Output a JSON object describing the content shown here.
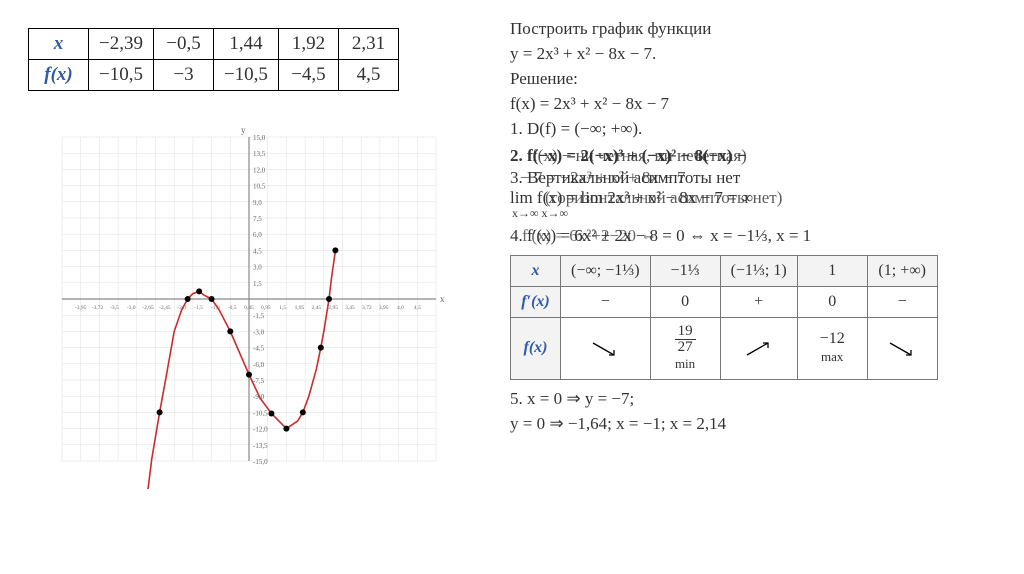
{
  "problem": {
    "title": "Построить график функции",
    "func": "y = 2x³ + x² − 8x − 7.",
    "solution_label": "Решение:",
    "fx": "f(x) = 2x³ + x² − 8x − 7",
    "step1": "1. D(f) = (−∞; +∞).",
    "step2a": "2. f(−x) = 2(−x)³ + (−x)² − 8(−x) −",
    "step2b": "f(x) − ни четная, ни нечетная)",
    "step3a": "3. Вертикальной асимптоты нет",
    "step3b": "− 7 = −2x³ + x² + 8x − 7",
    "step3c": "lim f(x) = lim 2x³ + x² − 8x − 7 = ∞",
    "step3d": "(горизонтальной асимптоты нет)",
    "step_sub": "x→∞            x→∞",
    "step4a": "4. f′(x) = 6x² + 2x − 8 = 0 ⇔ x = −1⅓, x = 1",
    "step4b": "f′(x) = 6x²+2−20  ⇔",
    "step5a": "5. x = 0 ⇒ y = −7;",
    "step5b": "y = 0 ⇒ −1,64; x = −1; x = 2,14"
  },
  "value_table": {
    "row_headers": [
      "x",
      "f(x)"
    ],
    "cols": [
      "−2,39",
      "−0,5",
      "1,44",
      "1,92",
      "2,31"
    ],
    "fx": [
      "−10,5",
      "−3",
      "−10,5",
      "−4,5",
      "4,5"
    ]
  },
  "sign_table": {
    "row_labels": [
      "x",
      "f′(x)",
      "f(x)"
    ],
    "col_headers": [
      "(−∞; −1⅓)",
      "−1⅓",
      "(−1⅓; 1)",
      "1",
      "(1; +∞)"
    ],
    "fprime": [
      "−",
      "0",
      "+",
      "0",
      "−"
    ],
    "fvals": {
      "0": {
        "arrow": "down"
      },
      "1": {
        "frac_top": "19",
        "frac_bot": "27",
        "note": "min"
      },
      "2": {
        "arrow": "up"
      },
      "3": {
        "text": "−12",
        "note": "max"
      },
      "4": {
        "arrow": "down"
      }
    }
  },
  "chart": {
    "type": "line",
    "background_color": "#ffffff",
    "axis_color": "#888888",
    "grid_color": "#dddddd",
    "curve_color": "#cc2b2b",
    "point_color": "#000000",
    "xlim": [
      -5.0,
      5.0
    ],
    "ylim": [
      -15,
      15
    ],
    "xtick_step": 0.5,
    "ytick_step": 1.5,
    "xticks_labels": [
      "-3,95",
      "-3,72",
      "-3,5",
      "-3,0",
      "-2,65",
      "-2,45",
      "-2,0",
      "-1,5",
      "-1,0",
      "-0,5",
      "0,45",
      "0,95",
      "1,5",
      "1,95",
      "2,45",
      "2,95",
      "3,45",
      "3,72",
      "3,95",
      "4,0",
      "4,5",
      "4,95"
    ],
    "series": {
      "x": [
        -2.75,
        -2.6,
        -2.39,
        -2.2,
        -2.0,
        -1.8,
        -1.64,
        -1.5,
        -1.333,
        -1.2,
        -1.0,
        -0.8,
        -0.5,
        -0.2,
        0.0,
        0.3,
        0.6,
        1.0,
        1.3,
        1.44,
        1.6,
        1.8,
        1.92,
        2.0,
        2.14,
        2.2,
        2.31
      ],
      "y": [
        -19.0,
        -14.8,
        -10.5,
        -6.9,
        -3.0,
        -1.0,
        0.0,
        0.5,
        0.704,
        0.35,
        0.0,
        -1.0,
        -3.0,
        -5.4,
        -7.0,
        -9.2,
        -10.6,
        -12.0,
        -11.3,
        -10.5,
        -9.0,
        -6.5,
        -4.5,
        -3.0,
        0.0,
        1.8,
        4.5
      ]
    },
    "marked_points": [
      [
        -2.39,
        -10.5
      ],
      [
        -1.64,
        0
      ],
      [
        -1.333,
        0.704
      ],
      [
        -1,
        0
      ],
      [
        -0.5,
        -3
      ],
      [
        0,
        -7
      ],
      [
        0.6,
        -10.6
      ],
      [
        1,
        -12
      ],
      [
        1.44,
        -10.5
      ],
      [
        1.92,
        -4.5
      ],
      [
        2.14,
        0
      ],
      [
        2.31,
        4.5
      ]
    ]
  }
}
